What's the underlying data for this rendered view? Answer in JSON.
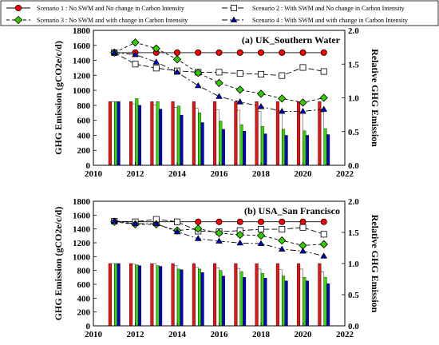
{
  "legend": {
    "items": [
      {
        "label": "Scenario 1 : No SWM and No change in Carbon Intensity",
        "marker": "circle",
        "color": "#ff0000",
        "dash": "solid"
      },
      {
        "label": "Scenario 2 : With SWM and No change in Carbon Intensity",
        "marker": "square",
        "color": "#ffffff",
        "dash": "long"
      },
      {
        "label": "Scenario 3 : No SWM and with change in Carbon Intensity",
        "marker": "diamond",
        "color": "#33cc00",
        "dash": "short"
      },
      {
        "label": "Scenario 4 : With SWM and with change in Carbon Intensity",
        "marker": "triangle",
        "color": "#0000cc",
        "dash": "dashdot"
      }
    ]
  },
  "colors": {
    "s1": "#ee1111",
    "s2": "#ffffff",
    "s3": "#33dd00",
    "s4": "#0000cc"
  },
  "chart_data": [
    {
      "type": "bar+line",
      "title": "(a) UK_Southern Water",
      "ylabel": "GHG Emission (gCO2e/c/d)",
      "y2label": "Relative GHG Emission",
      "xlim": [
        2010,
        2022
      ],
      "ylim": [
        0,
        1800
      ],
      "y2lim": [
        0,
        2.0
      ],
      "xticks": [
        "2010",
        "2012",
        "2014",
        "2016",
        "2018",
        "2020",
        "2022"
      ],
      "yticks": [
        "0",
        "200",
        "400",
        "600",
        "800",
        "1000",
        "1200",
        "1400",
        "1600",
        "1800"
      ],
      "y2ticks": [
        "0.0",
        "0.5",
        "1.0",
        "1.5",
        "2.0"
      ],
      "grid": false,
      "x": [
        2011,
        2012,
        2013,
        2014,
        2015,
        2016,
        2017,
        2018,
        2019,
        2020,
        2021
      ],
      "bars": [
        {
          "name": "Scenario 1",
          "values": [
            850,
            850,
            850,
            850,
            850,
            850,
            850,
            850,
            850,
            850,
            850
          ]
        },
        {
          "name": "Scenario 2",
          "values": [
            850,
            820,
            800,
            770,
            760,
            740,
            735,
            720,
            720,
            705,
            710
          ]
        },
        {
          "name": "Scenario 3",
          "values": [
            850,
            890,
            850,
            790,
            700,
            590,
            540,
            520,
            480,
            460,
            490
          ]
        },
        {
          "name": "Scenario 4",
          "values": [
            850,
            800,
            750,
            670,
            570,
            480,
            455,
            420,
            400,
            400,
            410
          ]
        }
      ],
      "lines": [
        {
          "name": "Scenario 1",
          "values": [
            1.67,
            1.67,
            1.67,
            1.67,
            1.67,
            1.67,
            1.67,
            1.67,
            1.67,
            1.67,
            1.67
          ]
        },
        {
          "name": "Scenario 2",
          "values": [
            1.67,
            1.5,
            1.44,
            1.4,
            1.38,
            1.38,
            1.36,
            1.35,
            1.33,
            1.45,
            1.39
          ]
        },
        {
          "name": "Scenario 3",
          "values": [
            1.67,
            1.82,
            1.73,
            1.57,
            1.37,
            1.22,
            1.12,
            1.06,
            0.99,
            0.93,
            1.0
          ]
        },
        {
          "name": "Scenario 4",
          "values": [
            1.67,
            1.64,
            1.53,
            1.38,
            1.18,
            1.02,
            0.94,
            0.87,
            0.8,
            0.8,
            0.83
          ]
        }
      ]
    },
    {
      "type": "bar+line",
      "title": "(b) USA_San Francisco",
      "ylabel": "GHG Emission (gCO2e/c/d)",
      "y2label": "Relative GHG Emission",
      "xlim": [
        2010,
        2022
      ],
      "ylim": [
        0,
        1800
      ],
      "y2lim": [
        0,
        2.0
      ],
      "xticks": [
        "2010",
        "2012",
        "2014",
        "2016",
        "2018",
        "2020",
        "2022"
      ],
      "yticks": [
        "0",
        "200",
        "400",
        "600",
        "800",
        "1000",
        "1200",
        "1400",
        "1600",
        "1800"
      ],
      "y2ticks": [
        "0.0",
        "0.5",
        "1.0",
        "1.5",
        "2.0"
      ],
      "grid": false,
      "x": [
        2011,
        2012,
        2013,
        2014,
        2015,
        2016,
        2017,
        2018,
        2019,
        2020,
        2021
      ],
      "bars": [
        {
          "name": "Scenario 1",
          "values": [
            900,
            900,
            900,
            900,
            900,
            900,
            900,
            900,
            900,
            900,
            900
          ]
        },
        {
          "name": "Scenario 2",
          "values": [
            900,
            890,
            900,
            870,
            850,
            840,
            830,
            820,
            810,
            820,
            780
          ]
        },
        {
          "name": "Scenario 3",
          "values": [
            900,
            880,
            870,
            820,
            820,
            800,
            780,
            760,
            720,
            700,
            700
          ]
        },
        {
          "name": "Scenario 4",
          "values": [
            900,
            870,
            860,
            810,
            770,
            720,
            700,
            690,
            650,
            650,
            610
          ]
        }
      ],
      "lines": [
        {
          "name": "Scenario 1",
          "values": [
            1.67,
            1.67,
            1.67,
            1.67,
            1.67,
            1.67,
            1.67,
            1.67,
            1.67,
            1.67,
            1.67
          ]
        },
        {
          "name": "Scenario 2",
          "values": [
            1.68,
            1.67,
            1.71,
            1.67,
            1.52,
            1.51,
            1.53,
            1.55,
            1.55,
            1.58,
            1.47
          ]
        },
        {
          "name": "Scenario 3",
          "values": [
            1.67,
            1.63,
            1.63,
            1.53,
            1.56,
            1.49,
            1.46,
            1.45,
            1.37,
            1.29,
            1.31
          ]
        },
        {
          "name": "Scenario 4",
          "values": [
            1.68,
            1.64,
            1.64,
            1.51,
            1.4,
            1.36,
            1.33,
            1.32,
            1.23,
            1.2,
            1.12
          ]
        }
      ]
    }
  ]
}
